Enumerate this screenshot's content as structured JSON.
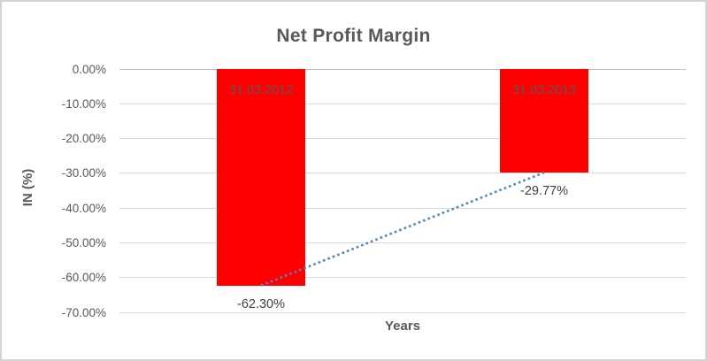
{
  "chart_data": {
    "type": "bar",
    "title": "Net Profit Margin",
    "xlabel": "Years",
    "ylabel": "IN (%)",
    "categories": [
      "31.03.2012",
      "31.03.2013"
    ],
    "values": [
      -62.3,
      -29.77
    ],
    "value_labels": [
      "-62.30%",
      "-29.77%"
    ],
    "y_ticks": [
      0,
      -10,
      -20,
      -30,
      -40,
      -50,
      -60,
      -70
    ],
    "y_tick_labels": [
      "0.00%",
      "-10.00%",
      "-20.00%",
      "-30.00%",
      "-40.00%",
      "-50.00%",
      "-60.00%",
      "-70.00%"
    ],
    "ylim": [
      -70,
      0
    ],
    "grid": true,
    "legend": "none",
    "bar_color": "#FF0000",
    "trendline": {
      "type": "linear",
      "style": "dotted",
      "color": "#4A87C9",
      "from_value": -62.3,
      "to_value": -29.77
    },
    "colors": {
      "title_text": "#595959",
      "axis_text": "#595959",
      "value_label_text": "#404040",
      "gridline": "#D9D9D9",
      "axis_line": "#BFBFBF",
      "chart_border": "#D4D4D4",
      "background": "#FFFFFF"
    }
  }
}
